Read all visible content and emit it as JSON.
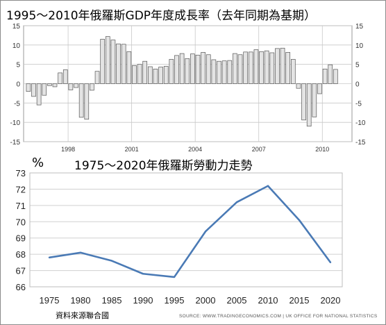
{
  "charts": {
    "growth_title": "1995～2010年俄羅斯GDP年度成長率（去年同期為基期）",
    "labor_title": "1975～2020年俄羅斯勞動力走勢",
    "labor_unit": "%"
  },
  "footer": {
    "source_note": "資料來源聯合國",
    "source_credit": "SOURCE: WWW.TRADINGECONOMICS.COM | UK OFFICE FOR NATIONAL STATISTICS"
  },
  "colors": {
    "bar_fill": "#e4e4e4",
    "bar_stroke": "#555555",
    "line": "#4a7ab5",
    "grid": "#c8c8c8"
  },
  "chart_data": [
    {
      "type": "bar",
      "title": "1995～2010年俄羅斯GDP年度成長率（去年同期為基期）",
      "ylim": [
        -15,
        15
      ],
      "yticks": [
        -15,
        -10,
        -5,
        0,
        5,
        10,
        15
      ],
      "y_axis_both_sides": true,
      "x_start": 1996.0,
      "x_step": 0.25,
      "x_range": [
        1995.9,
        2011.4
      ],
      "xticks": [
        1998,
        2001,
        2004,
        2007,
        2010
      ],
      "grid": true,
      "values": [
        -2.0,
        -3.3,
        -5.5,
        -3.0,
        -0.5,
        -0.8,
        2.8,
        3.6,
        -1.6,
        -1.0,
        -8.7,
        -9.2,
        -1.7,
        3.2,
        11.5,
        12.2,
        11.3,
        10.3,
        10.2,
        8.3,
        4.7,
        5.0,
        5.8,
        4.4,
        3.8,
        4.3,
        4.5,
        6.3,
        7.3,
        7.8,
        6.5,
        7.7,
        7.4,
        8.1,
        7.5,
        6.2,
        5.8,
        5.9,
        6.0,
        7.8,
        7.5,
        8.2,
        8.2,
        8.8,
        8.3,
        8.5,
        8.0,
        9.1,
        9.2,
        8.1,
        6.3,
        -1.2,
        -9.4,
        -11.0,
        -8.6,
        -2.6,
        3.8,
        4.9,
        3.7
      ]
    },
    {
      "type": "line",
      "title": "1975～2020年俄羅斯勞動力走勢",
      "ylabel": "%",
      "x": [
        1975,
        1980,
        1985,
        1990,
        1995,
        2000,
        2005,
        2010,
        2015,
        2020
      ],
      "values": [
        67.8,
        68.1,
        67.6,
        66.8,
        66.6,
        69.4,
        71.2,
        72.2,
        70.1,
        67.5
      ],
      "ylim": [
        66,
        73
      ],
      "yticks": [
        66,
        67,
        68,
        69,
        70,
        71,
        72,
        73
      ],
      "grid": true
    }
  ]
}
